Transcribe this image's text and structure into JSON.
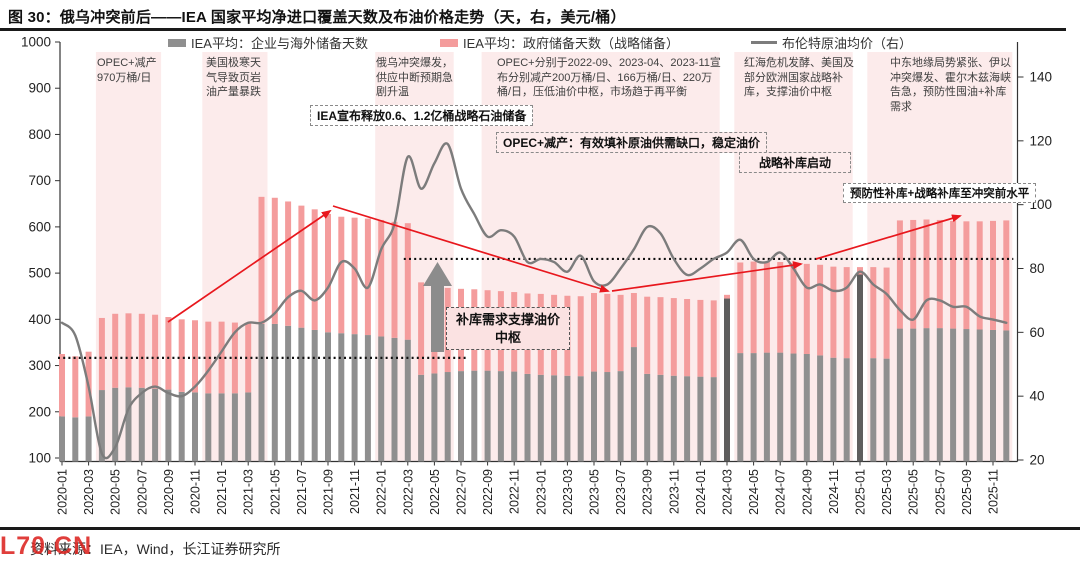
{
  "title": "图 30：俄乌冲突前后——IEA 国家平均净进口覆盖天数及布油价格走势（天，右，美元/桶）",
  "legend": [
    {
      "label": "IEA平均：企业与海外储备天数",
      "color": "#8f8f8f",
      "type": "bar"
    },
    {
      "label": "IEA平均：政府储备天数（战略储备）",
      "color": "#f49c9c",
      "type": "bar"
    },
    {
      "label": "布伦特原油均价（右）",
      "color": "#7c7c7c",
      "type": "line"
    }
  ],
  "annotations": {
    "opec_cut_2020": "OPEC+减产970万桶/日",
    "us_cold": "美国极寒天气导致页岩油产量暴跌",
    "russia_ukraine": "俄乌冲突爆发，供应中断预期急剧升温",
    "opec_cuts_2022": "OPEC+分别于2022-09、2023-04、2023-11宣布分别减产200万桶/日、166万桶/日、220万桶/日，压低油价中枢，市场趋于再平衡",
    "red_sea": "红海危机发酵、美国及部分欧洲国家战略补库，支撑油价中枢",
    "middle_east": "中东地缘局势紧张、伊以冲突爆发、霍尔木兹海峡告急，预防性囤油+补库需求",
    "iea_release": "IEA宣布释放0.6、1.2亿桶战略石油储备",
    "opec_cut_effect": "OPEC+减产：有效填补原油供需缺口，稳定油价",
    "strategic_restock": "战略补库启动",
    "precautionary_restock": "预防性补库+战略补库至冲突前水平",
    "restock_support": "补库需求支撑油价中枢"
  },
  "footer": {
    "source": "资料来源：IEA，Wind，长江证券研究所",
    "watermark": "L70.CN"
  },
  "chart_data": {
    "type": "bar+line",
    "title": "俄乌冲突前后——IEA 国家平均净进口覆盖天数及布油价格走势（天，右，美元/桶）",
    "x": [
      "2020-01",
      "2020-02",
      "2020-03",
      "2020-04",
      "2020-05",
      "2020-06",
      "2020-07",
      "2020-08",
      "2020-09",
      "2020-10",
      "2020-11",
      "2020-12",
      "2021-01",
      "2021-02",
      "2021-03",
      "2021-04",
      "2021-05",
      "2021-06",
      "2021-07",
      "2021-08",
      "2021-09",
      "2021-10",
      "2021-11",
      "2021-12",
      "2022-01",
      "2022-02",
      "2022-03",
      "2022-04",
      "2022-05",
      "2022-06",
      "2022-07",
      "2022-08",
      "2022-09",
      "2022-10",
      "2022-11",
      "2022-12",
      "2023-01",
      "2023-02",
      "2023-03",
      "2023-04",
      "2023-05",
      "2023-06",
      "2023-07",
      "2023-08",
      "2023-09",
      "2023-10",
      "2023-11",
      "2023-12",
      "2024-01",
      "2024-02",
      "2024-03",
      "2024-04",
      "2024-05",
      "2024-06",
      "2024-07",
      "2024-08",
      "2024-09",
      "2024-10",
      "2024-11",
      "2024-12",
      "2025-01",
      "2025-02",
      "2025-03",
      "2025-04",
      "2025-05",
      "2025-06",
      "2025-07",
      "2025-08",
      "2025-09",
      "2025-10",
      "2025-11",
      "2025-12"
    ],
    "x_axis_labels": [
      "2020-01",
      "2020-03",
      "2020-05",
      "2020-07",
      "2020-09",
      "2020-11",
      "2021-01",
      "2021-03",
      "2021-05",
      "2021-07",
      "2021-09",
      "2021-11",
      "2022-01",
      "2022-03",
      "2022-05",
      "2022-07",
      "2022-09",
      "2022-11",
      "2023-01",
      "2023-03",
      "2023-05",
      "2023-07",
      "2023-09",
      "2023-11",
      "2024-01",
      "2024-03",
      "2024-05",
      "2024-07",
      "2024-09",
      "2024-11",
      "2025-01",
      "2025-03",
      "2025-05",
      "2025-07",
      "2025-09",
      "2025-11"
    ],
    "series": [
      {
        "name": "IEA平均：企业与海外储备天数",
        "type": "bar",
        "stack": "days",
        "axis": "left",
        "color": "#8f8f8f",
        "values": [
          190,
          188,
          190,
          247,
          252,
          253,
          252,
          250,
          248,
          243,
          242,
          240,
          240,
          240,
          242,
          390,
          390,
          386,
          382,
          377,
          372,
          370,
          368,
          366,
          363,
          360,
          356,
          280,
          283,
          286,
          288,
          289,
          289,
          288,
          287,
          282,
          280,
          279,
          278,
          277,
          287,
          286,
          288,
          340,
          282,
          280,
          278,
          277,
          276,
          275,
          445,
          327,
          327,
          328,
          328,
          326,
          325,
          322,
          317,
          316,
          497,
          316,
          315,
          380,
          380,
          381,
          381,
          380,
          379,
          378,
          377,
          376
        ]
      },
      {
        "name": "IEA平均：政府储备天数（战略储备）",
        "type": "bar",
        "stack": "days",
        "axis": "left",
        "color": "#f49c9c",
        "values": [
          135,
          132,
          140,
          156,
          160,
          160,
          160,
          160,
          157,
          157,
          156,
          155,
          155,
          153,
          150,
          275,
          273,
          269,
          264,
          261,
          256,
          252,
          252,
          252,
          252,
          251,
          252,
          200,
          189,
          182,
          178,
          176,
          174,
          173,
          172,
          174,
          175,
          174,
          173,
          173,
          170,
          169,
          165,
          117,
          167,
          168,
          168,
          167,
          166,
          166,
          8,
          196,
          198,
          197,
          196,
          196,
          195,
          196,
          197,
          197,
          16,
          197,
          197,
          234,
          235,
          235,
          234,
          233,
          233,
          234,
          236,
          238
        ]
      },
      {
        "name": "布伦特原油均价（右）",
        "type": "line",
        "axis": "right",
        "color": "#7c7c7c",
        "values": [
          63,
          59,
          43,
          22,
          24,
          36,
          41,
          43,
          41,
          40,
          43,
          48,
          54,
          60,
          63,
          63,
          66,
          71,
          73,
          70,
          74,
          82,
          80,
          74,
          86,
          94,
          115,
          105,
          113,
          119,
          105,
          97,
          90,
          92,
          90,
          82,
          83,
          82,
          79,
          84,
          76,
          75,
          80,
          86,
          93,
          91,
          83,
          78,
          80,
          83,
          85,
          89,
          83,
          82,
          85,
          80,
          74,
          75,
          73,
          74,
          79,
          75,
          72,
          67,
          64,
          70,
          70,
          68,
          68,
          65,
          64,
          63
        ]
      }
    ],
    "left_axis": {
      "min": 100,
      "max": 1000,
      "ticks": [
        100,
        200,
        300,
        400,
        500,
        600,
        700,
        800,
        900,
        1000
      ]
    },
    "right_axis": {
      "min": 20,
      "max": 140,
      "ticks": [
        20,
        40,
        60,
        80,
        100,
        120,
        140
      ]
    },
    "bands": [
      {
        "from": "2020-04",
        "to": "2020-08"
      },
      {
        "from": "2020-12",
        "to": "2021-04"
      },
      {
        "from": "2022-01",
        "to": "2022-06"
      },
      {
        "from": "2022-09",
        "to": "2024-02"
      },
      {
        "from": "2024-04",
        "to": "2024-12"
      },
      {
        "from": "2025-02",
        "to": "2025-12"
      }
    ],
    "reference_lines": [
      {
        "axis": "right",
        "value": 52,
        "from": "2020-01",
        "to": "2022-07",
        "style": "dotted"
      },
      {
        "axis": "right",
        "value": 83,
        "from": "2022-03",
        "to": "2025-12",
        "style": "dotted"
      }
    ],
    "grid": false,
    "legend_position": "top",
    "accent_colors": {
      "band": "#fcebeb",
      "arrow_red": "#e8171d",
      "dark_bar": "#5e5e5e"
    }
  }
}
